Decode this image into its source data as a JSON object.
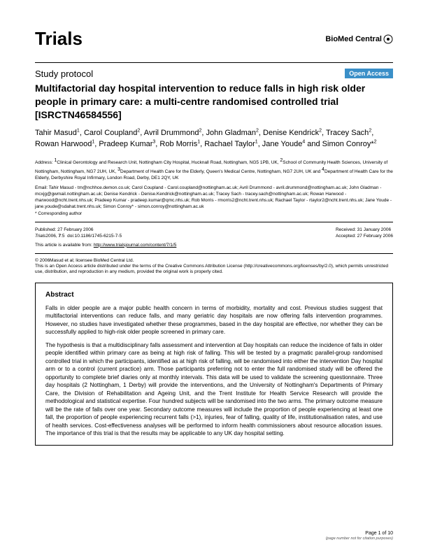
{
  "journal": "Trials",
  "logo_text": "BioMed Central",
  "article_type": "Study protocol",
  "open_access_label": "Open Access",
  "title": "Multifactorial day hospital intervention to reduce falls in high risk older people in primary care: a multi-centre randomised controlled trial [ISRCTN46584556]",
  "authors_html": "Tahir Masud<sup>1</sup>, Carol Coupland<sup>2</sup>, Avril Drummond<sup>2</sup>, John Gladman<sup>2</sup>, Denise Kendrick<sup>2</sup>, Tracey Sach<sup>2</sup>, Rowan Harwood<sup>1</sup>, Pradeep Kumar<sup>3</sup>, Rob Morris<sup>1</sup>, Rachael Taylor<sup>1</sup>, Jane Youde<sup>4</sup> and Simon Conroy*<sup>2</sup>",
  "address": "Address: <sup>1</sup>Clinical Gerontology and Research Unit, Nottingham City Hospital, Hucknall Road, Nottingham, NG5 1PB, UK, <sup>2</sup>School of Community Health Sciences, University of Nottingham, Nottingham, NG7 2UH, UK, <sup>3</sup>Department of Health Care for the Elderly, Queen's Medical Centre, Nottingham, NG7 2UH, UK and <sup>4</sup>Department of Health Care for the Elderly, Derbyshire Royal Infirmary, London Road, Derby, DE1 2QY, UK",
  "emails": "Email: Tahir Masud - tm@nchhce.demon.co.uk; Carol Coupland - Carol.coupland@nottingham.ac.uk; Avril Drummond - avril.drummond@nottingham.ac.uk; John Gladman - mcxjg@gwmail.nottingham.ac.uk; Denise Kendrick - Denise.Kendrick@nottingham.ac.uk; Tracey Sach - tracey.sach@nottingham.ac.uk; Rowan Harwood - rharwood@ncht.trent.nhs.uk; Pradeep Kumar - pradeep.kumar@qmc.nhs.uk; Rob Morris - rmorris2@ncht.trent.nhs.uk; Rachael Taylor - rtaylor2@ncht.trent.nhs.uk; Jane Youde - jane.youde@sdahat.trent.nhs.uk; Simon Conroy* - simon.conroy@nottingham.ac.uk",
  "corresponding": "* Corresponding author",
  "published": "Published: 27 February 2006",
  "citation": "<i>Trials</i>2006, <b>7</b>:5  doi:10.1186/1745-6215-7-5",
  "received": "Received: 31 January 2006",
  "accepted": "Accepted: 27 February 2006",
  "availability_text": "This article is available from: ",
  "availability_url": "http://www.trialsjournal.com/content/7/1/5",
  "license_line1": "© 2006Masud et al; licensee BioMed Central Ltd.",
  "license_line2": "This is an Open Access article distributed under the terms of the Creative Commons Attribution License (http://creativecommons.org/licenses/by/2.0), which permits unrestricted use, distribution, and reproduction in any medium, provided the original work is properly cited.",
  "abstract_heading": "Abstract",
  "abstract_p1": "Falls in older people are a major public health concern in terms of morbidity, mortality and cost. Previous studies suggest that multifactorial interventions can reduce falls, and many geriatric day hospitals are now offering falls intervention programmes. However, no studies have investigated whether these programmes, based in the day hospital are effective, nor whether they can be successfully applied to high-risk older people screened in primary care.",
  "abstract_p2": "The hypothesis is that a multidisciplinary falls assessment and intervention at Day hospitals can reduce the incidence of falls in older people identified within primary care as being at high risk of falling. This will be tested by a pragmatic parallel-group randomised controlled trial in which the participants, identified as at high risk of falling, will be randomised into either the intervention Day hospital arm or to a control (current practice) arm. Those participants preferring not to enter the full randomised study will be offered the opportunity to complete brief diaries only at monthly intervals. This data will be used to validate the screening questionnaire. Three day hospitals (2 Nottingham, 1 Derby) will provide the interventions, and the University of Nottingham's Departments of Primary Care, the Division of Rehabilitation and Ageing Unit, and the Trent Institute for Health Service Research will provide the methodological and statistical expertise. Four hundred subjects will be randomised into the two arms. The primary outcome measure will be the rate of falls over one year. Secondary outcome measures will include the proportion of people experiencing at least one fall, the proportion of people experiencing recurrent falls (>1), injuries, fear of falling, quality of life, institutionalisation rates, and use of health services. Cost-effectiveness analyses will be performed to inform health commissioners about resource allocation issues. The importance of this trial is that the results may be applicable to any UK day hospital setting.",
  "page_label": "Page 1 of 10",
  "page_note": "(page number not for citation purposes)"
}
